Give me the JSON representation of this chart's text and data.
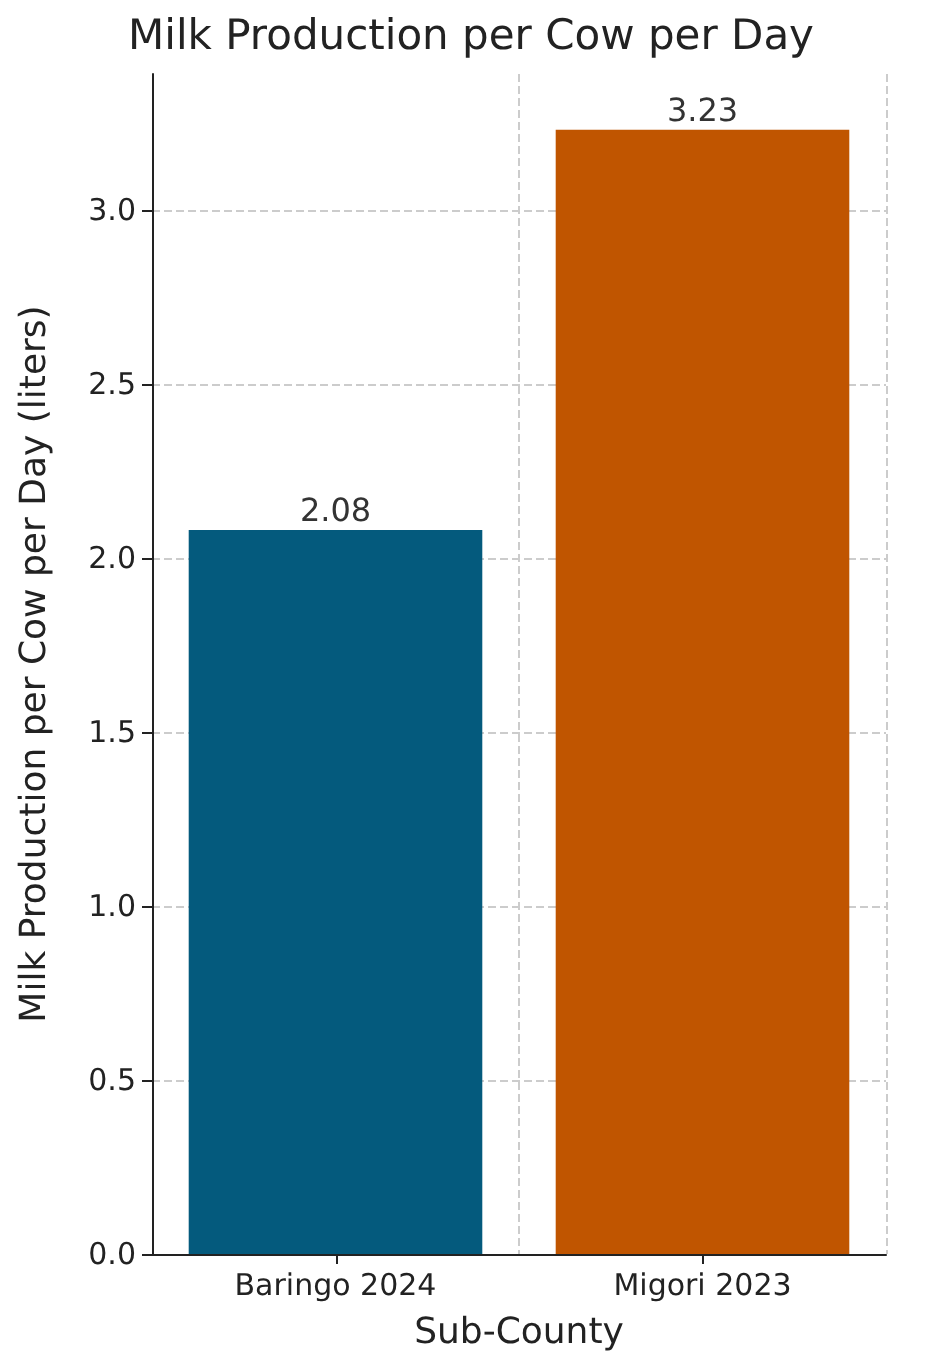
{
  "chart_data": {
    "type": "bar",
    "title": "Milk Production per Cow per Day",
    "xlabel": "Sub-County",
    "ylabel": "Milk Production per Cow per Day (liters)",
    "categories": [
      "Baringo 2024",
      "Migori 2023"
    ],
    "values": [
      2.08,
      3.23
    ],
    "colors": [
      "#045a7d",
      "#c05500"
    ],
    "ylim": [
      0,
      3.39
    ],
    "yticks": [
      {
        "value": 0,
        "label": "0.0"
      },
      0.5,
      {
        "value": 1,
        "label": "1.0"
      },
      1.5,
      {
        "value": 2,
        "label": "2.0"
      },
      2.5,
      {
        "value": 3,
        "label": "3.0"
      }
    ],
    "grid": true,
    "data_labels": true
  }
}
